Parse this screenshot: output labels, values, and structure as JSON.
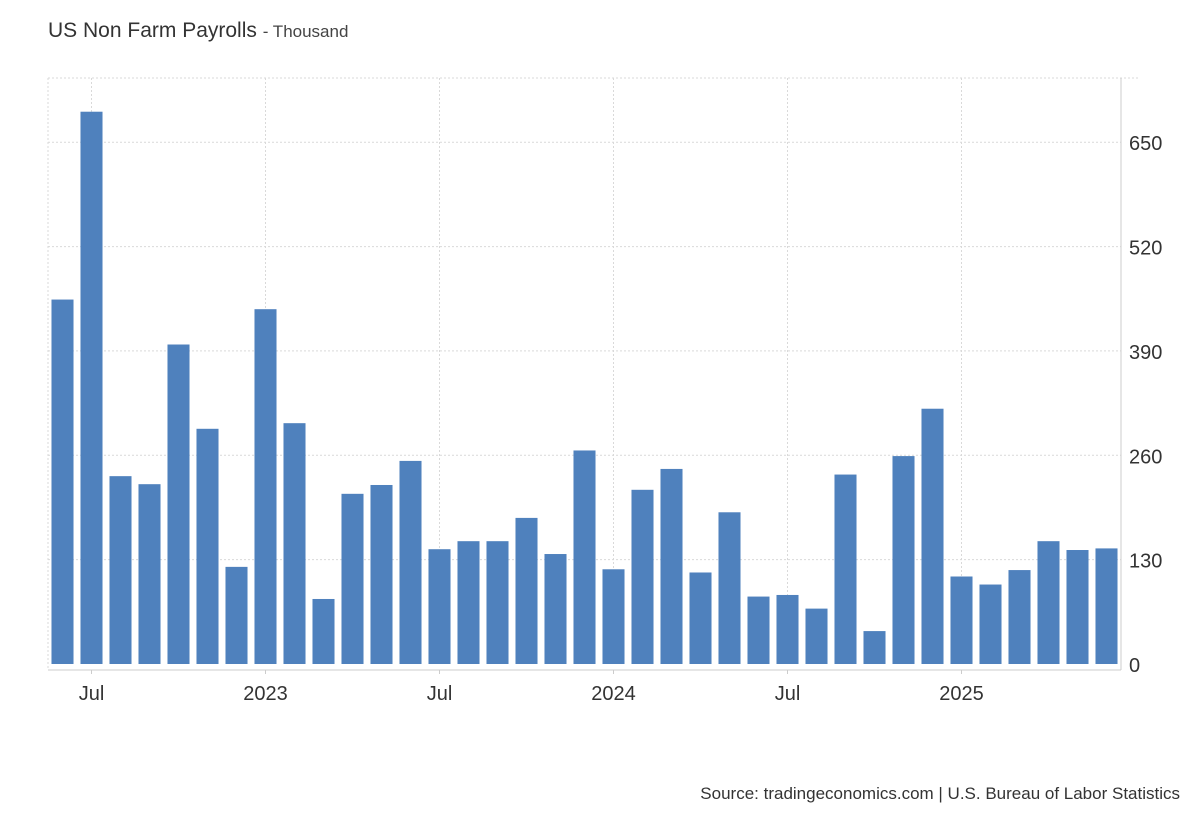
{
  "header": {
    "title": "US Non Farm Payrolls",
    "unit_label": "- Thousand"
  },
  "footer": {
    "source": "Source: tradingeconomics.com | U.S. Bureau of Labor Statistics"
  },
  "colors": {
    "bar": "#4F81BD",
    "grid": "#d9d9d9",
    "axis": "#cccccc",
    "text": "#333333"
  },
  "chart_data": {
    "type": "bar",
    "title": "US Non Farm Payrolls - Thousand",
    "xlabel": "",
    "ylabel": "",
    "grid": true,
    "y_axis_position": "right",
    "ylim": [
      0,
      730
    ],
    "yticks": [
      0,
      130,
      260,
      390,
      520,
      650
    ],
    "categories": [
      "2022-06",
      "2022-07",
      "2022-08",
      "2022-09",
      "2022-10",
      "2022-11",
      "2022-12",
      "2023-01",
      "2023-02",
      "2023-03",
      "2023-04",
      "2023-05",
      "2023-06",
      "2023-07",
      "2023-08",
      "2023-09",
      "2023-10",
      "2023-11",
      "2023-12",
      "2024-01",
      "2024-02",
      "2024-03",
      "2024-04",
      "2024-05",
      "2024-06",
      "2024-07",
      "2024-08",
      "2024-09",
      "2024-10",
      "2024-11",
      "2024-12",
      "2025-01",
      "2025-02",
      "2025-03",
      "2025-04",
      "2025-05",
      "2025-06"
    ],
    "xtick_labels": [
      {
        "category": "2022-07",
        "label": "Jul"
      },
      {
        "category": "2023-01",
        "label": "2023"
      },
      {
        "category": "2023-07",
        "label": "Jul"
      },
      {
        "category": "2024-01",
        "label": "2024"
      },
      {
        "category": "2024-07",
        "label": "Jul"
      },
      {
        "category": "2025-01",
        "label": "2025"
      }
    ],
    "series": [
      {
        "values": [
          454,
          688,
          234,
          224,
          398,
          293,
          121,
          442,
          300,
          81,
          212,
          223,
          253,
          143,
          153,
          153,
          182,
          137,
          266,
          118,
          217,
          243,
          114,
          189,
          84,
          86,
          69,
          236,
          41,
          259,
          318,
          109,
          99,
          117,
          153,
          142,
          144
        ]
      }
    ]
  }
}
